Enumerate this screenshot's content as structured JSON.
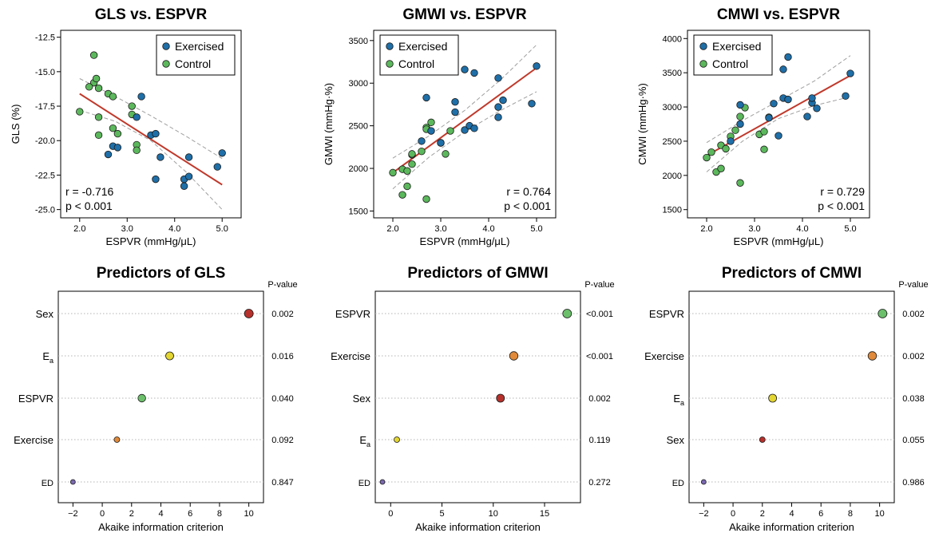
{
  "chart_data": [
    {
      "type": "scatter",
      "title": "GLS vs. ESPVR",
      "xlabel": "ESPVR (mmHg/μL)",
      "ylabel": "GLS (%)",
      "xlim": [
        1.6,
        5.4
      ],
      "ylim": [
        -25.6,
        -12.0
      ],
      "xticks": [
        "2.0",
        "3.0",
        "4.0",
        "5.0"
      ],
      "yticks": [
        "-12.5",
        "-15.0",
        "-17.5",
        "-20.0",
        "-22.5",
        "-25.0"
      ],
      "legend": {
        "position": "top-right",
        "entries": [
          "Exercised",
          "Control"
        ]
      },
      "annotation": [
        "r = -0.716",
        "p < 0.001"
      ],
      "annotation_position": "bottom-left",
      "fit": {
        "x": [
          2.0,
          5.0
        ],
        "y": [
          -16.6,
          -23.2
        ]
      },
      "ci_upper": {
        "x": [
          2.0,
          2.75,
          3.5,
          4.25,
          5.0
        ],
        "y": [
          -15.5,
          -16.8,
          -18.2,
          -19.7,
          -21.3
        ]
      },
      "ci_lower": {
        "x": [
          2.0,
          2.75,
          3.5,
          4.25,
          5.0
        ],
        "y": [
          -17.8,
          -18.6,
          -20.0,
          -22.3,
          -25.0
        ]
      },
      "series": [
        {
          "name": "Exercised",
          "color": "#1f6fa8",
          "points": [
            [
              3.3,
              -16.8
            ],
            [
              3.2,
              -18.3
            ],
            [
              2.7,
              -20.4
            ],
            [
              2.8,
              -20.5
            ],
            [
              2.6,
              -21.0
            ],
            [
              3.5,
              -19.6
            ],
            [
              3.6,
              -19.5
            ],
            [
              3.7,
              -21.2
            ],
            [
              3.6,
              -22.8
            ],
            [
              4.2,
              -22.8
            ],
            [
              4.2,
              -23.3
            ],
            [
              4.3,
              -22.6
            ],
            [
              4.3,
              -21.2
            ],
            [
              4.9,
              -21.9
            ],
            [
              5.0,
              -20.9
            ]
          ]
        },
        {
          "name": "Control",
          "color": "#5cb85c",
          "points": [
            [
              2.3,
              -13.8
            ],
            [
              2.3,
              -15.8
            ],
            [
              2.35,
              -15.5
            ],
            [
              2.4,
              -16.2
            ],
            [
              2.2,
              -16.1
            ],
            [
              2.0,
              -17.9
            ],
            [
              2.6,
              -16.6
            ],
            [
              2.7,
              -16.8
            ],
            [
              2.4,
              -18.3
            ],
            [
              2.7,
              -19.1
            ],
            [
              2.8,
              -19.5
            ],
            [
              2.4,
              -19.6
            ],
            [
              3.1,
              -17.5
            ],
            [
              3.1,
              -18.1
            ],
            [
              3.2,
              -20.3
            ],
            [
              3.2,
              -20.7
            ]
          ]
        }
      ]
    },
    {
      "type": "scatter",
      "title": "GMWI vs. ESPVR",
      "xlabel": "ESPVR (mmHg/μL)",
      "ylabel": "GMWI (mmHg·%)",
      "xlim": [
        1.6,
        5.4
      ],
      "ylim": [
        1420,
        3620
      ],
      "xticks": [
        "2.0",
        "3.0",
        "4.0",
        "5.0"
      ],
      "yticks": [
        "1500",
        "2000",
        "2500",
        "3000",
        "3500"
      ],
      "legend": {
        "position": "top-left",
        "entries": [
          "Exercised",
          "Control"
        ]
      },
      "annotation": [
        "r = 0.764",
        "p < 0.001"
      ],
      "annotation_position": "bottom-right",
      "fit": {
        "x": [
          2.0,
          5.0
        ],
        "y": [
          1950,
          3180
        ]
      },
      "ci_upper": {
        "x": [
          2.0,
          2.75,
          3.5,
          4.25,
          5.0
        ],
        "y": [
          2120,
          2380,
          2680,
          3040,
          3450
        ]
      },
      "ci_lower": {
        "x": [
          2.0,
          2.75,
          3.5,
          4.25,
          5.0
        ],
        "y": [
          1760,
          2130,
          2430,
          2680,
          2900
        ]
      },
      "series": [
        {
          "name": "Exercised",
          "color": "#1f6fa8",
          "points": [
            [
              2.7,
              2830
            ],
            [
              2.8,
              2440
            ],
            [
              2.6,
              2320
            ],
            [
              3.0,
              2300
            ],
            [
              3.3,
              2660
            ],
            [
              3.3,
              2780
            ],
            [
              3.5,
              2450
            ],
            [
              3.5,
              3160
            ],
            [
              3.6,
              2500
            ],
            [
              3.7,
              3120
            ],
            [
              3.7,
              2470
            ],
            [
              4.2,
              3060
            ],
            [
              4.2,
              2600
            ],
            [
              4.2,
              2720
            ],
            [
              4.3,
              2800
            ],
            [
              4.9,
              2760
            ],
            [
              5.0,
              3200
            ]
          ]
        },
        {
          "name": "Control",
          "color": "#5cb85c",
          "points": [
            [
              2.0,
              1950
            ],
            [
              2.2,
              1990
            ],
            [
              2.3,
              1970
            ],
            [
              2.2,
              1690
            ],
            [
              2.3,
              1790
            ],
            [
              2.4,
              2160
            ],
            [
              2.4,
              2050
            ],
            [
              2.4,
              2170
            ],
            [
              2.6,
              2200
            ],
            [
              2.7,
              2480
            ],
            [
              2.7,
              2460
            ],
            [
              2.8,
              2540
            ],
            [
              2.7,
              1640
            ],
            [
              3.0,
              2300
            ],
            [
              3.1,
              2170
            ],
            [
              3.2,
              2440
            ]
          ]
        }
      ]
    },
    {
      "type": "scatter",
      "title": "CMWI vs. ESPVR",
      "xlabel": "ESPVR (mmHg/μL)",
      "ylabel": "CMWI (mmHg·%)",
      "xlim": [
        1.6,
        5.4
      ],
      "ylim": [
        1380,
        4120
      ],
      "xticks": [
        "2.0",
        "3.0",
        "4.0",
        "5.0"
      ],
      "yticks": [
        "1500",
        "2000",
        "2500",
        "3000",
        "3500",
        "4000"
      ],
      "legend": {
        "position": "top-left",
        "entries": [
          "Exercised",
          "Control"
        ]
      },
      "annotation": [
        "r = 0.729",
        "p < 0.001"
      ],
      "annotation_position": "bottom-right",
      "fit": {
        "x": [
          2.0,
          5.0
        ],
        "y": [
          2290,
          3460
        ]
      },
      "ci_upper": {
        "x": [
          2.0,
          2.75,
          3.5,
          4.25,
          5.0
        ],
        "y": [
          2480,
          2800,
          3090,
          3380,
          3750
        ]
      },
      "ci_lower": {
        "x": [
          2.0,
          2.75,
          3.5,
          4.25,
          5.0
        ],
        "y": [
          2050,
          2500,
          2830,
          3020,
          3150
        ]
      },
      "series": [
        {
          "name": "Exercised",
          "color": "#1f6fa8",
          "points": [
            [
              2.5,
              2500
            ],
            [
              2.7,
              2750
            ],
            [
              2.7,
              3030
            ],
            [
              3.3,
              2840
            ],
            [
              3.4,
              3050
            ],
            [
              3.5,
              2580
            ],
            [
              3.6,
              3550
            ],
            [
              3.6,
              3130
            ],
            [
              3.7,
              3730
            ],
            [
              3.7,
              3110
            ],
            [
              4.1,
              2860
            ],
            [
              4.2,
              3060
            ],
            [
              4.2,
              3130
            ],
            [
              4.3,
              2980
            ],
            [
              4.9,
              3160
            ],
            [
              5.0,
              3490
            ]
          ]
        },
        {
          "name": "Control",
          "color": "#5cb85c",
          "points": [
            [
              2.0,
              2260
            ],
            [
              2.1,
              2340
            ],
            [
              2.2,
              2050
            ],
            [
              2.3,
              2100
            ],
            [
              2.3,
              2440
            ],
            [
              2.4,
              2390
            ],
            [
              2.5,
              2570
            ],
            [
              2.7,
              2860
            ],
            [
              2.6,
              2660
            ],
            [
              2.8,
              2990
            ],
            [
              2.7,
              1890
            ],
            [
              3.1,
              2600
            ],
            [
              3.2,
              2640
            ],
            [
              3.2,
              2380
            ],
            [
              3.3,
              2850
            ]
          ]
        }
      ]
    },
    {
      "type": "dot",
      "title": "Predictors of GLS",
      "xlabel": "Akaike information criterion",
      "xlim": [
        -3,
        11
      ],
      "xticks": [
        -2,
        0,
        2,
        4,
        6,
        8,
        10
      ],
      "xticklabels": [
        "−2",
        "0",
        "2",
        "4",
        "6",
        "8",
        "10"
      ],
      "pvalue_header": "P-value",
      "rows": [
        {
          "label": "Sex",
          "sub": "",
          "value": 10.0,
          "pvalue": "0.002",
          "color": "#b7312c",
          "size": 5.5
        },
        {
          "label": "E",
          "sub": "a",
          "value": 4.6,
          "pvalue": "0.016",
          "color": "#e3d532",
          "size": 5.0
        },
        {
          "label": "ESPVR",
          "sub": "",
          "value": 2.7,
          "pvalue": "0.040",
          "color": "#6cbf6b",
          "size": 4.8
        },
        {
          "label": "Exercise",
          "sub": "",
          "value": 1.0,
          "pvalue": "0.092",
          "color": "#e08a3a",
          "size": 3.5
        },
        {
          "label": "ED",
          "sub": "",
          "value": -2.0,
          "pvalue": "0.847",
          "color": "#7a68b0",
          "size": 3.0
        }
      ]
    },
    {
      "type": "dot",
      "title": "Predictors of GMWI",
      "xlabel": "Akaike information criterion",
      "xlim": [
        -1.5,
        18.5
      ],
      "xticks": [
        0,
        5,
        10,
        15
      ],
      "xticklabels": [
        "0",
        "5",
        "10",
        "15"
      ],
      "pvalue_header": "P-value",
      "rows": [
        {
          "label": "ESPVR",
          "sub": "",
          "value": 17.2,
          "pvalue": "<0.001",
          "color": "#6cbf6b",
          "size": 5.5
        },
        {
          "label": "Exercise",
          "sub": "",
          "value": 12.0,
          "pvalue": "<0.001",
          "color": "#e08a3a",
          "size": 5.3
        },
        {
          "label": "Sex",
          "sub": "",
          "value": 10.7,
          "pvalue": "0.002",
          "color": "#b7312c",
          "size": 5.0
        },
        {
          "label": "E",
          "sub": "a",
          "value": 0.6,
          "pvalue": "0.119",
          "color": "#e3d532",
          "size": 3.5
        },
        {
          "label": "ED",
          "sub": "",
          "value": -0.8,
          "pvalue": "0.272",
          "color": "#7a68b0",
          "size": 3.0
        }
      ]
    },
    {
      "type": "dot",
      "title": "Predictors of CMWI",
      "xlabel": "Akaike information criterion",
      "xlim": [
        -3,
        11
      ],
      "xticks": [
        -2,
        0,
        2,
        4,
        6,
        8,
        10
      ],
      "xticklabels": [
        "−2",
        "0",
        "2",
        "4",
        "6",
        "8",
        "10"
      ],
      "pvalue_header": "P-value",
      "rows": [
        {
          "label": "ESPVR",
          "sub": "",
          "value": 10.2,
          "pvalue": "0.002",
          "color": "#6cbf6b",
          "size": 5.5
        },
        {
          "label": "Exercise",
          "sub": "",
          "value": 9.5,
          "pvalue": "0.002",
          "color": "#e08a3a",
          "size": 5.3
        },
        {
          "label": "E",
          "sub": "a",
          "value": 2.7,
          "pvalue": "0.038",
          "color": "#e3d532",
          "size": 5.0
        },
        {
          "label": "Sex",
          "sub": "",
          "value": 2.0,
          "pvalue": "0.055",
          "color": "#b7312c",
          "size": 3.5
        },
        {
          "label": "ED",
          "sub": "",
          "value": -2.0,
          "pvalue": "0.986",
          "color": "#7a68b0",
          "size": 3.0
        }
      ]
    }
  ]
}
